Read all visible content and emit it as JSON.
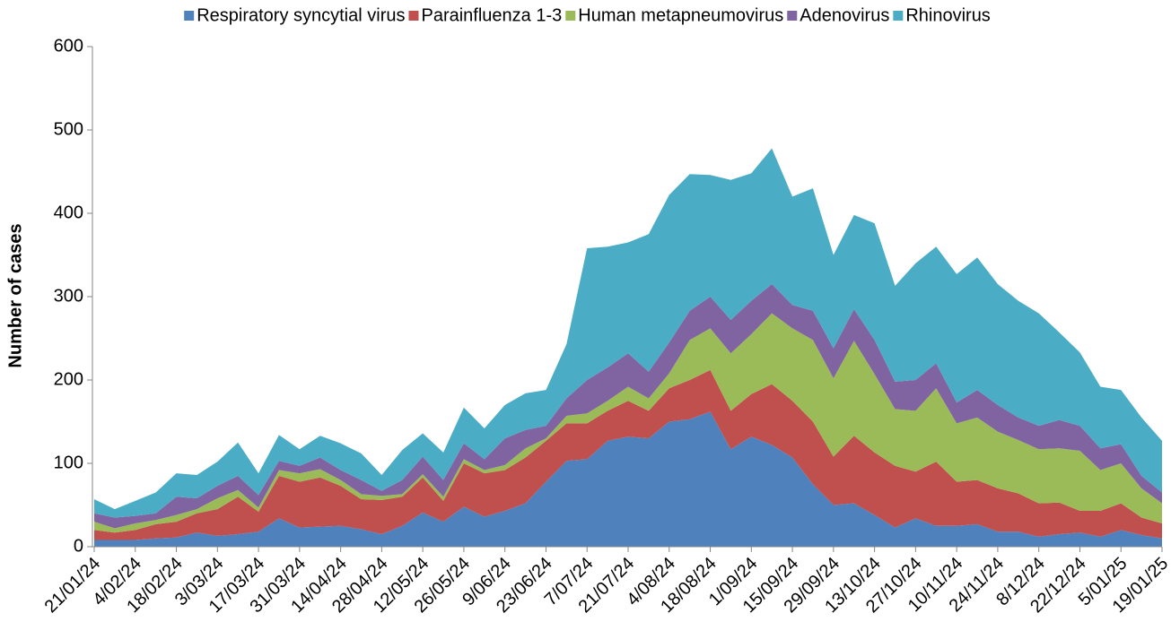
{
  "chart_data": {
    "type": "stacked_area",
    "y_label": "Number of cases",
    "categories": [
      "21/01/24",
      null,
      "4/02/24",
      null,
      "18/02/24",
      null,
      "3/03/24",
      null,
      "17/03/24",
      null,
      "31/03/24",
      null,
      "14/04/24",
      null,
      "28/04/24",
      null,
      "12/05/24",
      null,
      "26/05/24",
      null,
      "9/06/24",
      null,
      "23/06/24",
      null,
      "7/07/24",
      null,
      "21/07/24",
      null,
      "4/08/24",
      null,
      "18/08/24",
      null,
      "1/09/24",
      null,
      "15/09/24",
      null,
      "29/09/24",
      null,
      "13/10/24",
      null,
      "27/10/24",
      null,
      "10/11/24",
      null,
      "24/11/24",
      null,
      "8/12/24",
      null,
      "22/12/24",
      null,
      "5/01/25",
      null,
      "19/01/25"
    ],
    "series": [
      {
        "name": "Respiratory syncytial virus",
        "color": "#4f81bd",
        "values": [
          8,
          8,
          8,
          10,
          11,
          17,
          13,
          15,
          18,
          34,
          23,
          24,
          25,
          21,
          15,
          25,
          41,
          30,
          48,
          36,
          43,
          52,
          78,
          103,
          105,
          127,
          132,
          130,
          150,
          153,
          162,
          117,
          132,
          122,
          107,
          75,
          50,
          52,
          38,
          23,
          34,
          25,
          25,
          27,
          18,
          18,
          12,
          15,
          17,
          12,
          20,
          14,
          10
        ]
      },
      {
        "name": "Parainfluenza 1-3",
        "color": "#c0504d",
        "values": [
          12,
          9,
          12,
          17,
          19,
          23,
          32,
          45,
          24,
          51,
          55,
          59,
          48,
          36,
          41,
          35,
          42,
          25,
          52,
          52,
          49,
          55,
          49,
          45,
          43,
          36,
          43,
          33,
          40,
          47,
          50,
          46,
          51,
          73,
          68,
          75,
          58,
          81,
          75,
          74,
          56,
          77,
          53,
          53,
          52,
          46,
          40,
          38,
          26,
          31,
          32,
          21,
          18
        ]
      },
      {
        "name": "Human metapneumovirus",
        "color": "#9bbb59",
        "values": [
          10,
          5,
          8,
          5,
          8,
          5,
          13,
          8,
          5,
          7,
          10,
          10,
          7,
          6,
          5,
          3,
          4,
          5,
          5,
          4,
          6,
          11,
          3,
          9,
          12,
          12,
          17,
          15,
          18,
          48,
          50,
          69,
          72,
          85,
          87,
          98,
          94,
          114,
          94,
          68,
          73,
          88,
          70,
          75,
          68,
          64,
          65,
          65,
          72,
          49,
          48,
          35,
          24
        ]
      },
      {
        "name": "Adenovirus",
        "color": "#8064a2",
        "values": [
          10,
          13,
          9,
          8,
          22,
          13,
          15,
          17,
          15,
          11,
          9,
          14,
          12,
          17,
          6,
          17,
          21,
          20,
          19,
          13,
          32,
          22,
          15,
          21,
          40,
          40,
          40,
          32,
          37,
          35,
          38,
          40,
          40,
          35,
          28,
          35,
          36,
          38,
          41,
          33,
          37,
          30,
          25,
          33,
          32,
          27,
          28,
          34,
          30,
          26,
          23,
          15,
          13
        ]
      },
      {
        "name": "Rhinovirus",
        "color": "#4bacc6",
        "values": [
          17,
          10,
          18,
          25,
          28,
          28,
          29,
          40,
          26,
          31,
          20,
          26,
          32,
          32,
          19,
          36,
          28,
          33,
          43,
          37,
          40,
          44,
          43,
          65,
          158,
          145,
          133,
          165,
          177,
          164,
          146,
          168,
          153,
          163,
          130,
          147,
          112,
          113,
          140,
          115,
          140,
          140,
          154,
          159,
          145,
          140,
          135,
          105,
          88,
          74,
          65,
          70,
          62
        ]
      }
    ],
    "ylim": [
      0,
      600
    ],
    "yticks": [
      0,
      100,
      200,
      300,
      400,
      500,
      600
    ],
    "grid": false,
    "legend": "top"
  }
}
